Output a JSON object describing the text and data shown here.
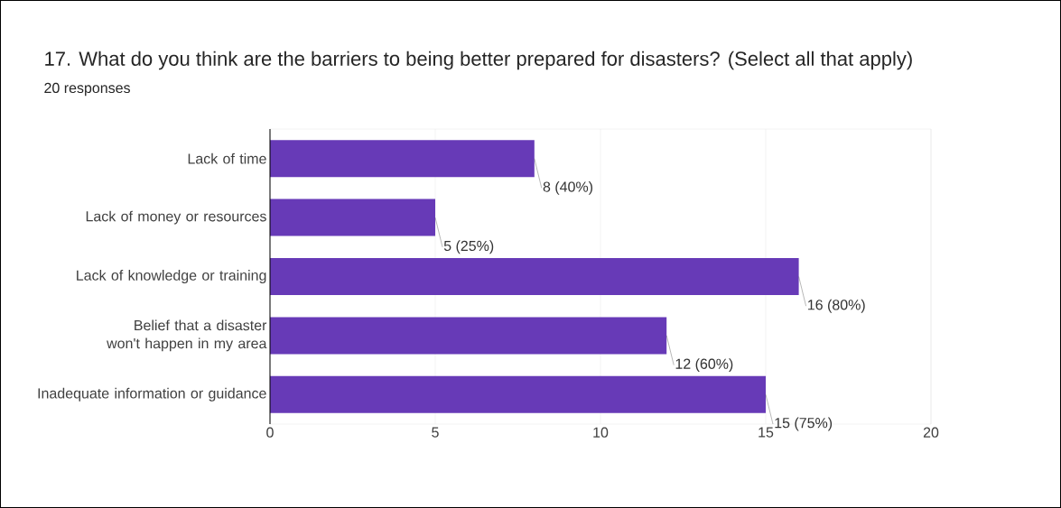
{
  "chart_data": {
    "type": "bar",
    "orientation": "horizontal",
    "title": "17. What do you think are the barriers to being better prepared for disasters? (Select all that apply)",
    "subtitle": "20 responses",
    "categories": [
      "Lack of time",
      "Lack of money or resources",
      "Lack of knowledge or training",
      "Belief that a disaster won't happen in my area",
      "Inadequate information or guidance"
    ],
    "values": [
      8,
      5,
      16,
      12,
      15
    ],
    "value_labels": [
      "8 (40%)",
      "5 (25%)",
      "16 (80%)",
      "12 (60%)",
      "15 (75%)"
    ],
    "color": "#673ab7",
    "xlim": [
      0,
      20
    ],
    "xticks": [
      0,
      5,
      10,
      15,
      20
    ],
    "grid": "x"
  }
}
